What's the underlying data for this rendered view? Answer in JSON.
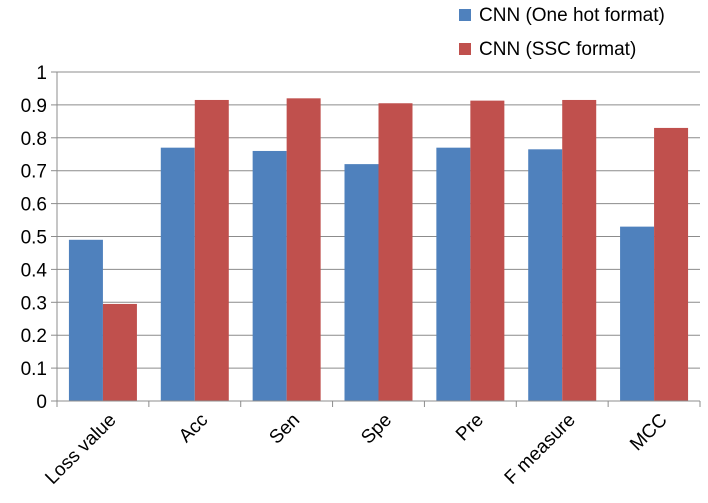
{
  "chart_data": {
    "type": "bar",
    "title": "",
    "xlabel": "",
    "ylabel": "",
    "categories": [
      "Loss value",
      "Acc",
      "Sen",
      "Spe",
      "Pre",
      "F measure",
      "MCC"
    ],
    "series": [
      {
        "name": "CNN (One hot format)",
        "color": "#4F81BD",
        "values": [
          0.49,
          0.77,
          0.76,
          0.72,
          0.77,
          0.765,
          0.53
        ]
      },
      {
        "name": "CNN (SSC format)",
        "color": "#C0504D",
        "values": [
          0.295,
          0.915,
          0.92,
          0.905,
          0.913,
          0.915,
          0.83
        ]
      }
    ],
    "yticks": [
      "0",
      "0.1",
      "0.2",
      "0.3",
      "0.4",
      "0.5",
      "0.6",
      "0.7",
      "0.8",
      "0.9",
      "1"
    ],
    "ylim": [
      0,
      1
    ],
    "grid": true,
    "legend_position": "top-right",
    "category_label_rotation": -45
  }
}
